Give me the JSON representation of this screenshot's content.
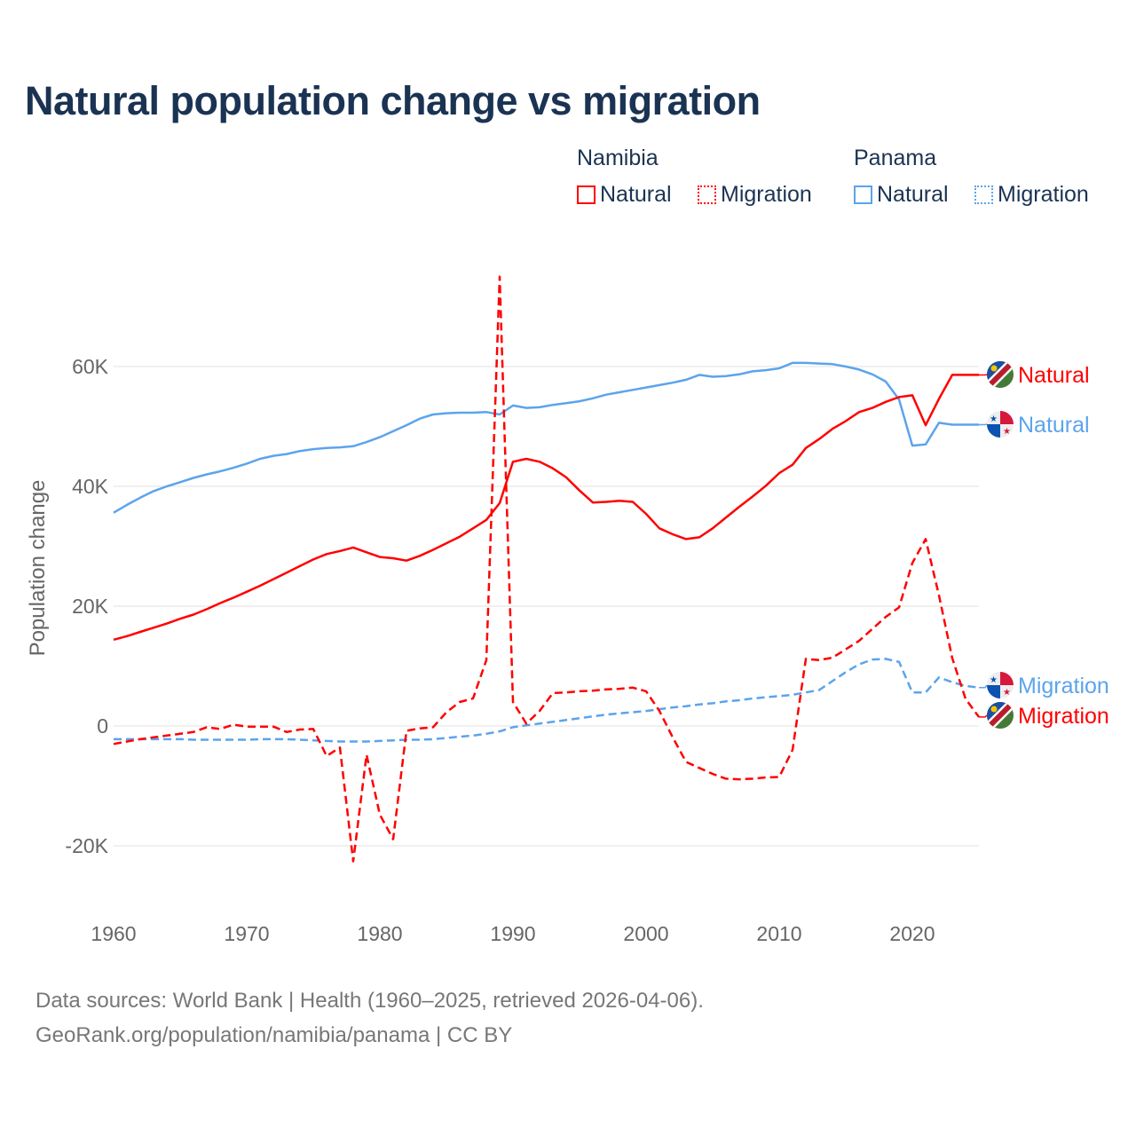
{
  "title": "Natural population change vs migration",
  "legend": {
    "groups": [
      {
        "country": "Namibia",
        "items": [
          "Natural",
          "Migration"
        ]
      },
      {
        "country": "Panama",
        "items": [
          "Natural",
          "Migration"
        ]
      }
    ]
  },
  "source": {
    "line1": "Data sources: World Bank | Health (1960–2025, retrieved 2026-04-06).",
    "line2": "GeoRank.org/population/namibia/panama | CC BY"
  },
  "chart_data": {
    "type": "line",
    "title": "Natural population change vs migration",
    "xlabel": "",
    "ylabel": "Population change",
    "xlim": [
      1960,
      2025
    ],
    "ylim": [
      -30000,
      75000
    ],
    "x_ticks": [
      1960,
      1970,
      1980,
      1990,
      2000,
      2010,
      2020
    ],
    "x_tick_labels": [
      "1960",
      "1970",
      "1980",
      "1990",
      "2000",
      "2010",
      "2020"
    ],
    "y_ticks": [
      -20000,
      0,
      20000,
      40000,
      60000
    ],
    "y_tick_labels": [
      "-20K",
      "0",
      "20K",
      "40K",
      "60K"
    ],
    "grid": true,
    "legend_position": "top-right",
    "x_start": 1960,
    "series": [
      {
        "name": "Namibia Natural",
        "label": "Natural",
        "country": "Namibia",
        "color": "#ff0000",
        "dash": false,
        "values": [
          14.4,
          15.0,
          15.7,
          16.4,
          17.1,
          17.9,
          18.6,
          19.5,
          20.5,
          21.4,
          22.4,
          23.4,
          24.5,
          25.6,
          26.7,
          27.8,
          28.7,
          29.2,
          29.8,
          29.0,
          28.2,
          28.0,
          27.6,
          28.4,
          29.4,
          30.5,
          31.6,
          33.0,
          34.4,
          37.2,
          44.1,
          44.6,
          44.1,
          43.0,
          41.5,
          39.3,
          37.3,
          37.4,
          37.6,
          37.4,
          35.4,
          33.0,
          32.0,
          31.2,
          31.5,
          33.0,
          34.8,
          36.6,
          38.3,
          40.1,
          42.2,
          43.6,
          46.4,
          47.9,
          49.6,
          50.9,
          52.4,
          53.1,
          54.1,
          54.9,
          55.2,
          50.2,
          54.6,
          58.6,
          58.6,
          58.6
        ]
      },
      {
        "name": "Namibia Migration",
        "label": "Migration",
        "country": "Namibia",
        "color": "#ff0000",
        "dash": true,
        "values": [
          -3.0,
          -2.6,
          -2.2,
          -1.9,
          -1.6,
          -1.3,
          -1.0,
          -0.2,
          -0.5,
          0.2,
          -0.1,
          -0.1,
          -0.1,
          -1.0,
          -0.6,
          -0.5,
          -5.0,
          -3.6,
          -22.6,
          -4.8,
          -14.8,
          -18.9,
          -0.8,
          -0.4,
          -0.2,
          2.3,
          4.0,
          4.6,
          11.0,
          75.0,
          4.0,
          0.4,
          2.5,
          5.5,
          5.6,
          5.8,
          5.9,
          6.1,
          6.2,
          6.4,
          5.8,
          2.5,
          -1.9,
          -6.0,
          -7.0,
          -8.0,
          -8.8,
          -8.9,
          -8.8,
          -8.6,
          -8.5,
          -4.0,
          11.2,
          11.0,
          11.4,
          12.8,
          14.2,
          16.2,
          18.2,
          19.8,
          27.2,
          31.2,
          21.8,
          11.3,
          4.5,
          1.5
        ]
      },
      {
        "name": "Panama Natural",
        "label": "Natural",
        "country": "Panama",
        "color": "#5ba4ec",
        "dash": false,
        "values": [
          35.6,
          36.9,
          38.1,
          39.2,
          40.0,
          40.7,
          41.4,
          42.0,
          42.5,
          43.1,
          43.8,
          44.6,
          45.1,
          45.4,
          45.9,
          46.2,
          46.4,
          46.5,
          46.7,
          47.4,
          48.2,
          49.2,
          50.2,
          51.3,
          52.0,
          52.2,
          52.3,
          52.3,
          52.4,
          52.0,
          53.5,
          53.1,
          53.2,
          53.6,
          53.9,
          54.2,
          54.7,
          55.3,
          55.7,
          56.1,
          56.5,
          56.9,
          57.3,
          57.8,
          58.6,
          58.3,
          58.4,
          58.7,
          59.2,
          59.4,
          59.7,
          60.6,
          60.6,
          60.5,
          60.4,
          60.0,
          59.5,
          58.7,
          57.5,
          54.5,
          46.8,
          47.0,
          50.6,
          50.3,
          50.3,
          50.3
        ]
      },
      {
        "name": "Panama Migration",
        "label": "Migration",
        "country": "Panama",
        "color": "#5ba4ec",
        "dash": true,
        "values": [
          -2.2,
          -2.2,
          -2.2,
          -2.2,
          -2.2,
          -2.2,
          -2.3,
          -2.3,
          -2.3,
          -2.3,
          -2.3,
          -2.2,
          -2.2,
          -2.2,
          -2.3,
          -2.4,
          -2.5,
          -2.6,
          -2.6,
          -2.6,
          -2.5,
          -2.4,
          -2.3,
          -2.3,
          -2.2,
          -2.0,
          -1.8,
          -1.6,
          -1.3,
          -0.9,
          -0.2,
          0.1,
          0.4,
          0.7,
          1.0,
          1.3,
          1.6,
          1.9,
          2.1,
          2.3,
          2.5,
          2.8,
          3.1,
          3.3,
          3.6,
          3.8,
          4.1,
          4.3,
          4.6,
          4.8,
          5.0,
          5.2,
          5.6,
          6.0,
          7.5,
          9.0,
          10.3,
          11.1,
          11.2,
          10.7,
          5.6,
          5.6,
          8.1,
          7.3,
          6.7,
          6.4
        ]
      }
    ],
    "units_note": "values in thousands"
  }
}
